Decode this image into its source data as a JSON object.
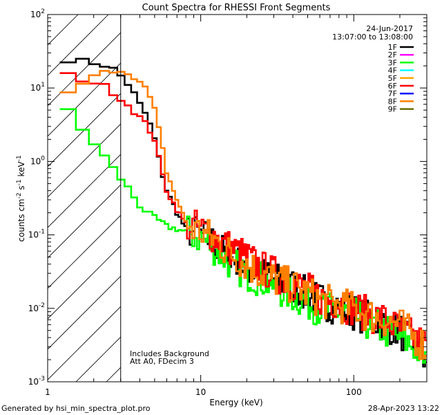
{
  "chart_data": {
    "type": "line",
    "title": "Count Spectra for RHESSI Front Segments",
    "xlabel": "Energy (keV)",
    "ylabel": "counts cm-2 s-1 keV-1",
    "xscale": "log",
    "yscale": "log",
    "xlim": [
      1,
      300
    ],
    "ylim": [
      0.001,
      100
    ],
    "x_ticks": [
      {
        "value": 1,
        "label": "1"
      },
      {
        "value": 10,
        "label": "10"
      },
      {
        "value": 100,
        "label": "100"
      }
    ],
    "y_ticks": [
      {
        "value": 0.001,
        "base": "10",
        "exp": "-3"
      },
      {
        "value": 0.01,
        "base": "10",
        "exp": "-2"
      },
      {
        "value": 0.1,
        "base": "10",
        "exp": "-1"
      },
      {
        "value": 1,
        "base": "10",
        "exp": "0"
      },
      {
        "value": 10,
        "base": "10",
        "exp": "1"
      },
      {
        "value": 100,
        "base": "10",
        "exp": "2"
      }
    ],
    "date": "24-Jun-2017",
    "time_range": "13:07:00 to 13:08:00",
    "excluded_region_max_kev": 3,
    "annotations": [
      "Includes Background",
      "Att A0, FDecim 3"
    ],
    "legend": [
      {
        "name": "1F",
        "color": "#000000"
      },
      {
        "name": "2F",
        "color": "#ff00ff"
      },
      {
        "name": "3F",
        "color": "#00ff00"
      },
      {
        "name": "4F",
        "color": "#00ffff"
      },
      {
        "name": "5F",
        "color": "#ffa500"
      },
      {
        "name": "6F",
        "color": "#ff0000"
      },
      {
        "name": "7F",
        "color": "#0000ff"
      },
      {
        "name": "8F",
        "color": "#ff7f00"
      },
      {
        "name": "9F",
        "color": "#6b6b00"
      }
    ],
    "series": [
      {
        "name": "1F",
        "color": "#000000",
        "x": [
          1.2,
          1.5,
          2,
          2.5,
          2.8,
          3.2,
          3.6,
          4,
          4.5,
          5,
          5.5,
          6,
          7,
          8,
          9,
          10,
          12,
          15,
          20,
          25,
          30,
          40,
          50,
          60,
          80,
          100,
          130,
          160,
          200,
          250,
          300
        ],
        "y": [
          25,
          24,
          22,
          20,
          17,
          13,
          9,
          6,
          4,
          2,
          0.8,
          0.4,
          0.2,
          0.12,
          0.11,
          0.1,
          0.08,
          0.05,
          0.035,
          0.03,
          0.025,
          0.02,
          0.015,
          0.013,
          0.01,
          0.009,
          0.007,
          0.006,
          0.005,
          0.003,
          0.002
        ]
      },
      {
        "name": "3F",
        "color": "#00ff00",
        "x": [
          1.2,
          1.5,
          2,
          2.5,
          2.8,
          3.2,
          3.6,
          4,
          4.5,
          5,
          5.5,
          6,
          7,
          8,
          9,
          10,
          12,
          15,
          20,
          25,
          30,
          40,
          50,
          60,
          80,
          100,
          130,
          160,
          200,
          250,
          300
        ],
        "y": [
          7,
          3.5,
          1.8,
          1,
          0.7,
          0.5,
          0.35,
          0.25,
          0.2,
          0.17,
          0.15,
          0.13,
          0.12,
          0.11,
          0.1,
          0.09,
          0.07,
          0.045,
          0.03,
          0.025,
          0.02,
          0.015,
          0.012,
          0.01,
          0.009,
          0.008,
          0.006,
          0.005,
          0.004,
          0.003,
          0.002
        ]
      },
      {
        "name": "6F",
        "color": "#ff0000",
        "x": [
          1.2,
          1.5,
          2,
          2.5,
          2.8,
          3.2,
          3.6,
          4,
          4.5,
          5,
          5.5,
          6,
          7,
          8,
          9,
          10,
          12,
          15,
          20,
          25,
          30,
          40,
          50,
          60,
          80,
          100,
          130,
          160,
          200,
          250,
          300
        ],
        "y": [
          16,
          14,
          12,
          10,
          8,
          6.5,
          5,
          4,
          3,
          2,
          0.8,
          0.4,
          0.22,
          0.14,
          0.13,
          0.12,
          0.1,
          0.07,
          0.05,
          0.035,
          0.03,
          0.022,
          0.018,
          0.014,
          0.012,
          0.01,
          0.008,
          0.007,
          0.005,
          0.004,
          0.003
        ]
      },
      {
        "name": "8F",
        "color": "#ff7f00",
        "x": [
          1.2,
          1.5,
          2,
          2.5,
          2.8,
          3.2,
          3.6,
          4,
          4.5,
          5,
          5.5,
          6,
          7,
          8,
          9,
          10,
          12,
          15,
          20,
          25,
          30,
          40,
          50,
          60,
          80,
          100,
          130,
          160,
          200,
          250,
          300
        ],
        "y": [
          6.5,
          10,
          14,
          17,
          18,
          17,
          15,
          12,
          9,
          5,
          2,
          0.7,
          0.3,
          0.15,
          0.12,
          0.11,
          0.09,
          0.06,
          0.04,
          0.03,
          0.025,
          0.02,
          0.016,
          0.013,
          0.011,
          0.01,
          0.008,
          0.007,
          0.006,
          0.004,
          0.003
        ]
      }
    ]
  },
  "footer": {
    "generated_by": "Generated by hsi_min_spectra_plot.pro",
    "timestamp": "28-Apr-2023 13:22"
  }
}
